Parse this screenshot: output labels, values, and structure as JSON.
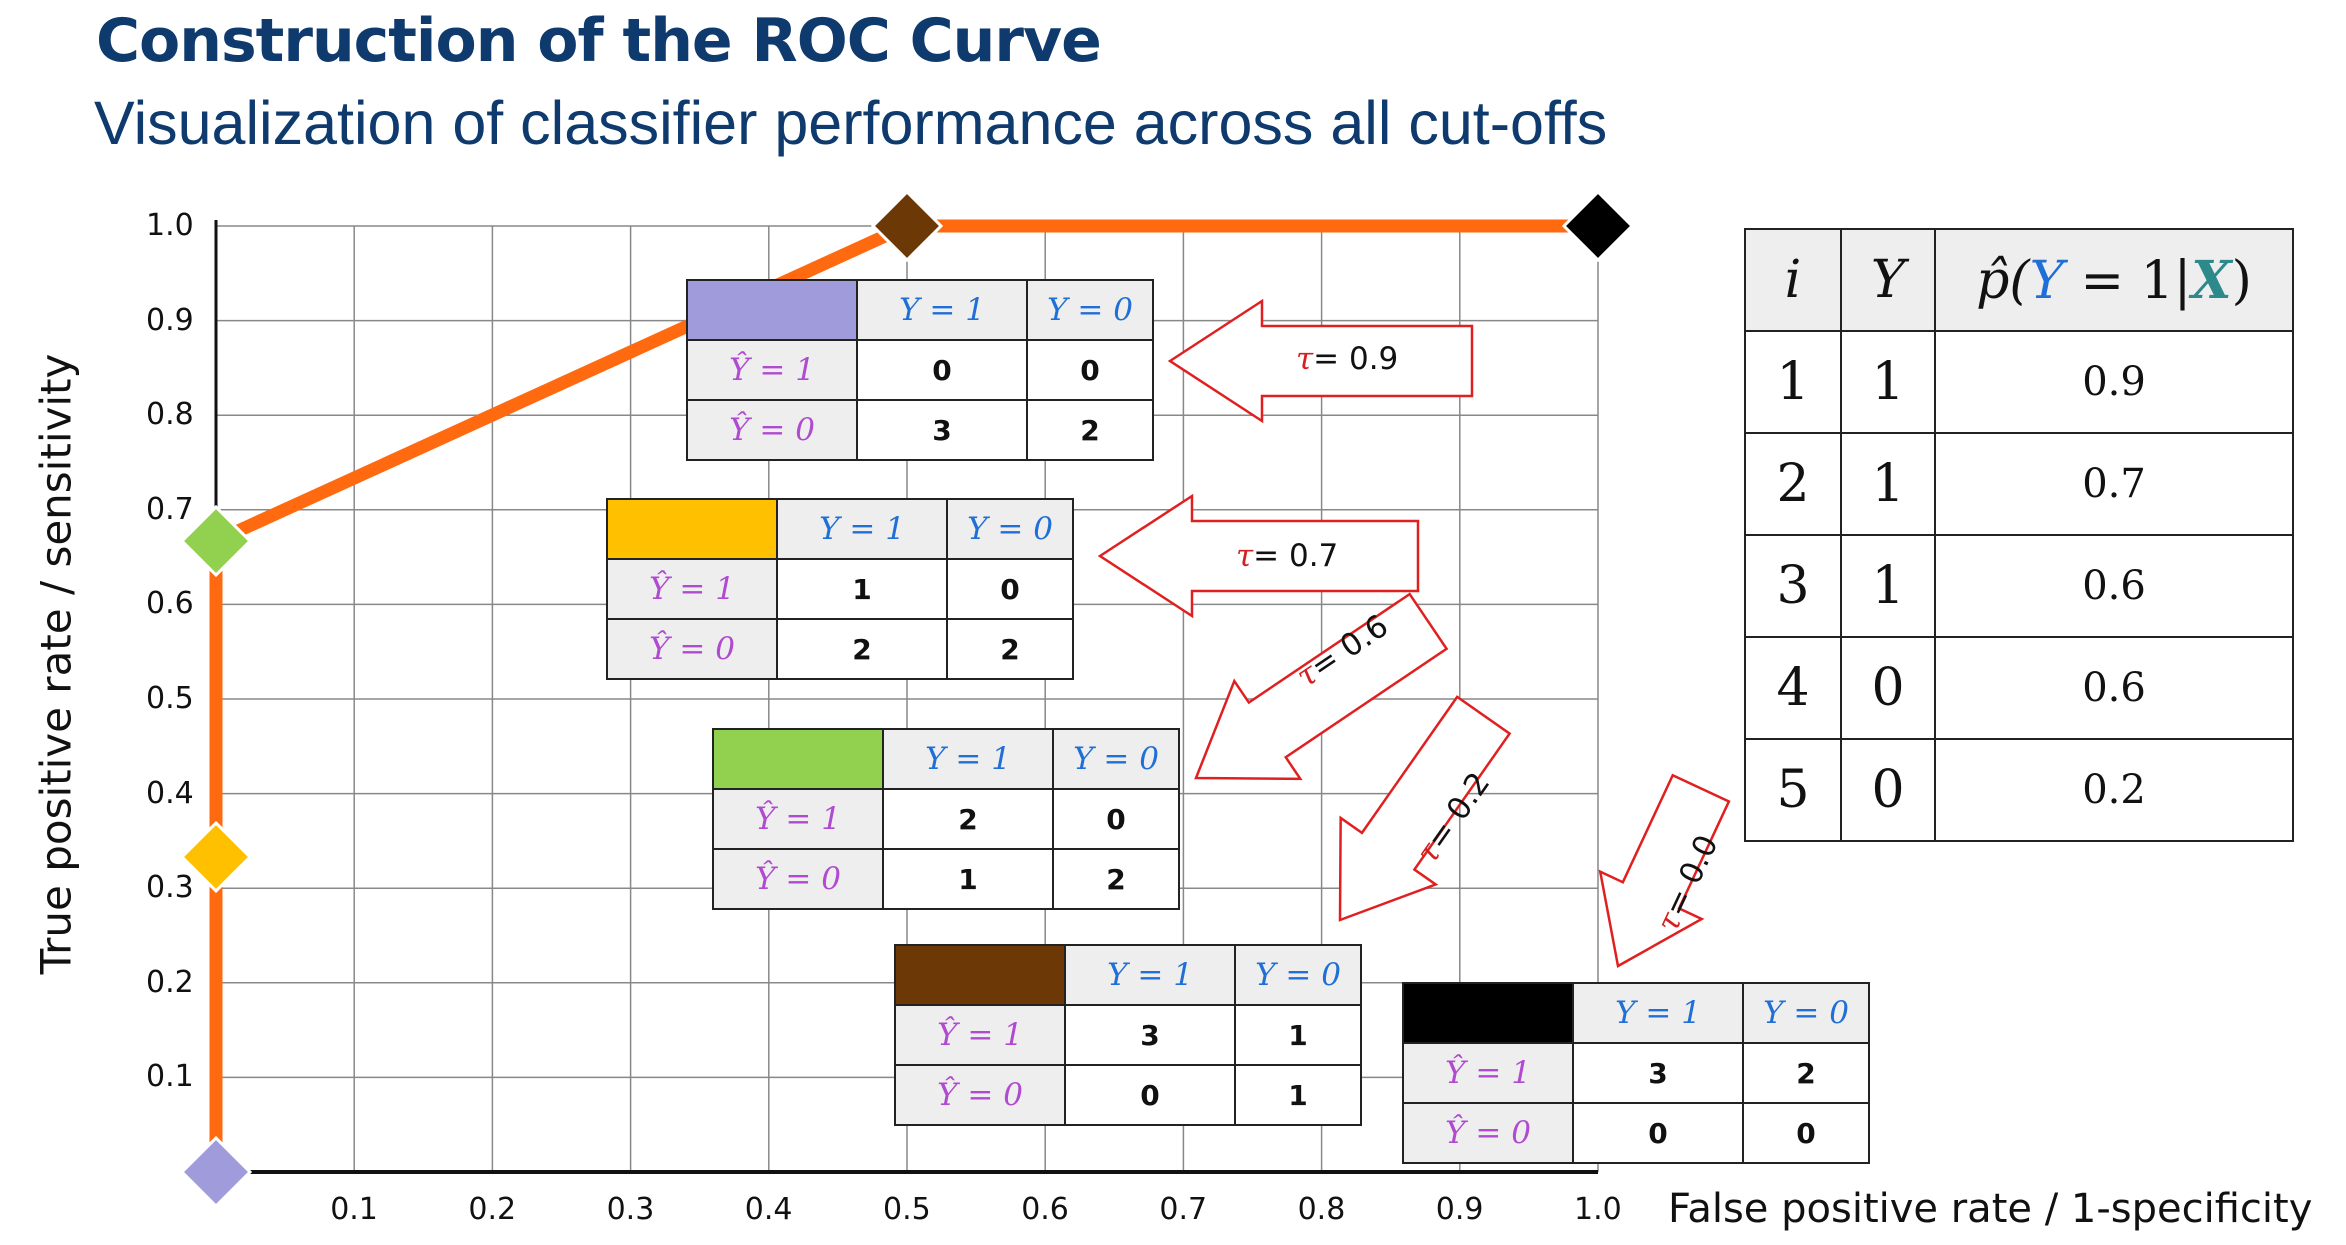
{
  "title": "Construction of the ROC Curve",
  "subtitle": "Visualization of classifier performance across all cut-offs",
  "chart_data": {
    "type": "line",
    "xlabel": "False positive rate / 1-specificity",
    "ylabel": "True positive rate / sensitivity",
    "xlim": [
      0,
      1.0
    ],
    "ylim": [
      0,
      1.0
    ],
    "grid": true,
    "x_ticks": [
      "0.1",
      "0.2",
      "0.3",
      "0.4",
      "0.5",
      "0.6",
      "0.7",
      "0.8",
      "0.9",
      "1.0"
    ],
    "y_ticks": [
      "0.1",
      "0.2",
      "0.3",
      "0.4",
      "0.5",
      "0.6",
      "0.7",
      "0.8",
      "0.9",
      "1.0"
    ],
    "roc_points": [
      {
        "fpr": 0.0,
        "tpr": 0.0,
        "color": "#a09cdc"
      },
      {
        "fpr": 0.0,
        "tpr": 0.333,
        "color": "#ffc000"
      },
      {
        "fpr": 0.0,
        "tpr": 0.667,
        "color": "#92d050"
      },
      {
        "fpr": 0.5,
        "tpr": 1.0,
        "color": "#6b3806"
      },
      {
        "fpr": 1.0,
        "tpr": 1.0,
        "color": "#000000"
      }
    ],
    "line_color": "#ff6a10"
  },
  "confusion_tables": [
    {
      "tau": "0.9",
      "swatch": "#a09cdc",
      "col1": "Y = 1",
      "col2": "Y = 0",
      "row1": "Ŷ = 1",
      "row2": "Ŷ = 0",
      "tp": "0",
      "fp": "0",
      "fn": "3",
      "tn": "2"
    },
    {
      "tau": "0.7",
      "swatch": "#ffc000",
      "col1": "Y = 1",
      "col2": "Y = 0",
      "row1": "Ŷ = 1",
      "row2": "Ŷ = 0",
      "tp": "1",
      "fp": "0",
      "fn": "2",
      "tn": "2"
    },
    {
      "tau": "0.6",
      "swatch": "#92d050",
      "col1": "Y = 1",
      "col2": "Y = 0",
      "row1": "Ŷ = 1",
      "row2": "Ŷ = 0",
      "tp": "2",
      "fp": "0",
      "fn": "1",
      "tn": "2"
    },
    {
      "tau": "0.2",
      "swatch": "#6b3806",
      "col1": "Y = 1",
      "col2": "Y = 0",
      "row1": "Ŷ = 1",
      "row2": "Ŷ = 0",
      "tp": "3",
      "fp": "1",
      "fn": "0",
      "tn": "1"
    },
    {
      "tau": "0.0",
      "swatch": "#000000",
      "col1": "Y = 1",
      "col2": "Y = 0",
      "row1": "Ŷ = 1",
      "row2": "Ŷ = 0",
      "tp": "3",
      "fp": "2",
      "fn": "0",
      "tn": "0"
    }
  ],
  "arrows": [
    {
      "prefix": "τ",
      "label": "= 0.9"
    },
    {
      "prefix": "τ",
      "label": "= 0.7"
    },
    {
      "prefix": "τ",
      "label": "= 0.6"
    },
    {
      "prefix": "τ",
      "label": "= 0.2"
    },
    {
      "prefix": "τ",
      "label": "= 0.0"
    }
  ],
  "prob_table": {
    "headers": {
      "i": "i",
      "y": "Y",
      "p_hat": "p̂(",
      "p_y": "Y",
      "p_eq": " = 1|",
      "p_x": "X",
      "p_close": ")"
    },
    "rows": [
      {
        "i": "1",
        "y": "1",
        "p": "0.9",
        "y_color": "#1a3a8a"
      },
      {
        "i": "2",
        "y": "1",
        "p": "0.7",
        "y_color": "#1a3a8a"
      },
      {
        "i": "3",
        "y": "1",
        "p": "0.6",
        "y_color": "#1a3a8a"
      },
      {
        "i": "4",
        "y": "0",
        "p": "0.6",
        "y_color": "#22a83a"
      },
      {
        "i": "5",
        "y": "0",
        "p": "0.2",
        "y_color": "#22a83a"
      }
    ]
  }
}
